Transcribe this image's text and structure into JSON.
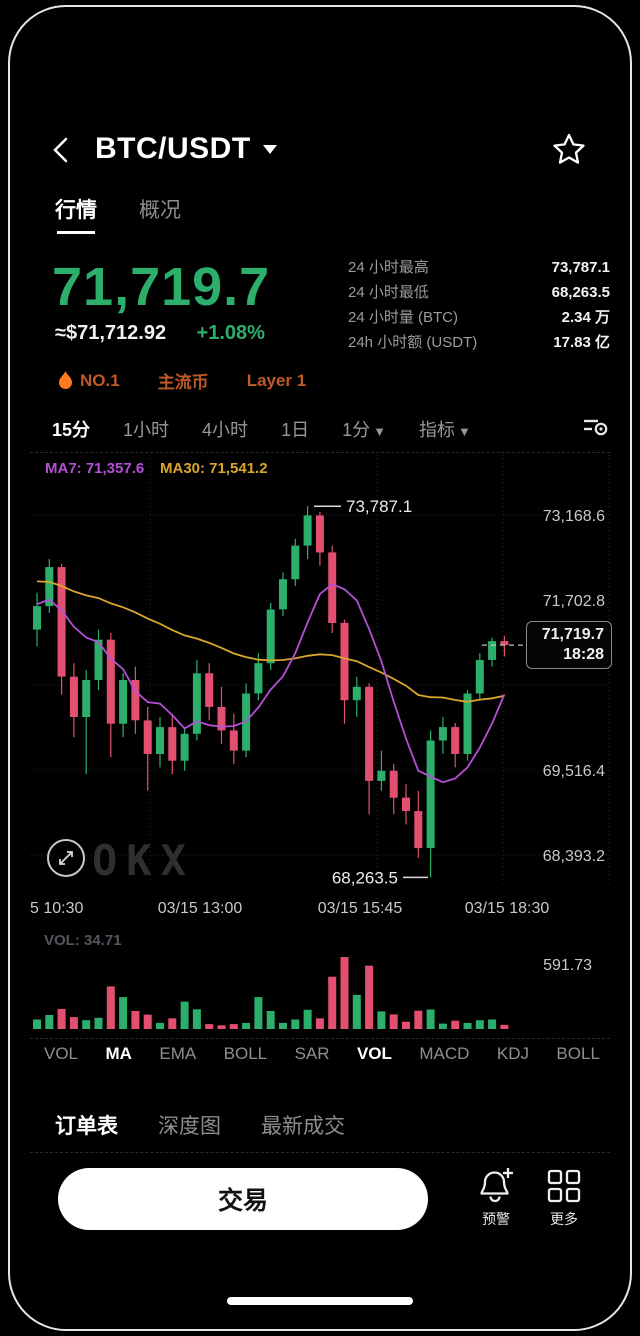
{
  "header": {
    "title": "BTC/USDT"
  },
  "tabs": [
    {
      "name": "quotes",
      "label": "行情",
      "active": true
    },
    {
      "name": "overview",
      "label": "概况",
      "active": false
    }
  ],
  "price": {
    "value": "71,719.7",
    "approx_usd": "≈$71,712.92",
    "change_pct": "+1.08%"
  },
  "stats": [
    {
      "name": "high-24h",
      "label": "24 小时最高",
      "value": "73,787.1"
    },
    {
      "name": "low-24h",
      "label": "24 小时最低",
      "value": "68,263.5"
    },
    {
      "name": "volume-btc-24h",
      "label": "24 小时量 (BTC)",
      "value": "2.34 万"
    },
    {
      "name": "turnover-usdt-24h",
      "label": "24h 小时额 (USDT)",
      "value": "17.83 亿"
    }
  ],
  "badges": [
    {
      "name": "rank-no1",
      "label": "NO.1",
      "flame": true
    },
    {
      "name": "mainstream-coin",
      "label": "主流币",
      "flame": false
    },
    {
      "name": "layer-1",
      "label": "Layer 1",
      "flame": false
    }
  ],
  "timeframes": [
    {
      "name": "tf-15m",
      "label": "15分",
      "active": true,
      "dropdown": false
    },
    {
      "name": "tf-1h",
      "label": "1小时",
      "active": false,
      "dropdown": false
    },
    {
      "name": "tf-4h",
      "label": "4小时",
      "active": false,
      "dropdown": false
    },
    {
      "name": "tf-1d",
      "label": "1日",
      "active": false,
      "dropdown": false
    },
    {
      "name": "tf-1m-dropdown",
      "label": "1分",
      "active": false,
      "dropdown": true
    },
    {
      "name": "indicators-dropdown",
      "label": "指标",
      "active": false,
      "dropdown": true
    }
  ],
  "chart_data": {
    "type": "candlestick",
    "ma_labels": [
      {
        "name": "MA7",
        "value": "71,357.6",
        "color": "#b44fd8"
      },
      {
        "name": "MA30",
        "value": "71,541.2",
        "color": "#d9a62b"
      }
    ],
    "y_axis_labels": [
      "73,168.6",
      "71,702.8",
      "69,516.4",
      "68,393.2"
    ],
    "x_axis_labels": [
      "5 10:30",
      "03/15 13:00",
      "03/15 15:45",
      "03/15 18:30"
    ],
    "high_annotation": "73,787.1",
    "low_annotation": "68,263.5",
    "price_tag": {
      "price": "71,719.7",
      "time": "18:28"
    },
    "watermark": "OKX",
    "y_range": [
      68150,
      74400
    ],
    "colors": {
      "up": "#2daf6c",
      "down": "#e3506f",
      "ma7": "#b44fd8",
      "ma30": "#d9a62b",
      "grid": "#26262f"
    },
    "candles": [
      [
        71950,
        72500,
        71700,
        72300
      ],
      [
        72300,
        73000,
        72200,
        72880
      ],
      [
        72880,
        72930,
        70980,
        71250
      ],
      [
        71250,
        71450,
        70350,
        70650
      ],
      [
        70650,
        71350,
        69800,
        71200
      ],
      [
        71200,
        71950,
        71050,
        71800
      ],
      [
        71800,
        71900,
        70050,
        70550
      ],
      [
        70550,
        71300,
        70350,
        71200
      ],
      [
        71200,
        71400,
        70400,
        70600
      ],
      [
        70600,
        70800,
        69550,
        70100
      ],
      [
        70100,
        70650,
        69900,
        70500
      ],
      [
        70500,
        70700,
        69800,
        70000
      ],
      [
        70000,
        70500,
        69850,
        70400
      ],
      [
        70400,
        71500,
        70300,
        71300
      ],
      [
        71300,
        71450,
        70600,
        70800
      ],
      [
        70800,
        71100,
        70250,
        70450
      ],
      [
        70450,
        70700,
        69950,
        70150
      ],
      [
        70150,
        71150,
        70050,
        71000
      ],
      [
        71000,
        71600,
        70900,
        71450
      ],
      [
        71450,
        72350,
        71350,
        72250
      ],
      [
        72250,
        72800,
        72150,
        72700
      ],
      [
        72700,
        73300,
        72600,
        73200
      ],
      [
        73200,
        73787.1,
        73000,
        73650
      ],
      [
        73650,
        73700,
        72900,
        73100
      ],
      [
        73100,
        73200,
        71900,
        72050
      ],
      [
        72050,
        72100,
        70550,
        70900
      ],
      [
        70900,
        71250,
        70650,
        71100
      ],
      [
        71100,
        71150,
        69200,
        69700
      ],
      [
        69700,
        70150,
        69550,
        69850
      ],
      [
        69850,
        69950,
        69200,
        69450
      ],
      [
        69450,
        69650,
        69050,
        69250
      ],
      [
        69250,
        69550,
        68550,
        68700
      ],
      [
        68700,
        70450,
        68263.5,
        70300
      ],
      [
        70300,
        70650,
        70100,
        70500
      ],
      [
        70500,
        70560,
        69900,
        70100
      ],
      [
        70100,
        71050,
        70000,
        71000
      ],
      [
        71000,
        71600,
        70900,
        71500
      ],
      [
        71500,
        71830,
        71400,
        71780
      ],
      [
        71780,
        71860,
        71550,
        71719.7
      ]
    ],
    "volume": {
      "label": "VOL: 34.71",
      "max_label": "591.73",
      "values": [
        78,
        115,
        165,
        98,
        72,
        92,
        350,
        262,
        148,
        118,
        50,
        88,
        225,
        162,
        40,
        30,
        40,
        50,
        262,
        148,
        50,
        78,
        158,
        88,
        430,
        591.73,
        280,
        520,
        145,
        120,
        60,
        150,
        160,
        44,
        68,
        50,
        72,
        78,
        34.71
      ]
    }
  },
  "indicators": [
    {
      "name": "ind-vol-1",
      "label": "VOL",
      "active": false
    },
    {
      "name": "ind-ma",
      "label": "MA",
      "active": true
    },
    {
      "name": "ind-ema",
      "label": "EMA",
      "active": false
    },
    {
      "name": "ind-boll-1",
      "label": "BOLL",
      "active": false
    },
    {
      "name": "ind-sar",
      "label": "SAR",
      "active": false
    },
    {
      "name": "ind-vol-2",
      "label": "VOL",
      "active": true
    },
    {
      "name": "ind-macd",
      "label": "MACD",
      "active": false
    },
    {
      "name": "ind-kdj",
      "label": "KDJ",
      "active": false
    },
    {
      "name": "ind-boll-2",
      "label": "BOLL",
      "active": false
    }
  ],
  "bottom_tabs": [
    {
      "name": "order-book",
      "label": "订单表",
      "active": true
    },
    {
      "name": "depth-chart",
      "label": "深度图",
      "active": false
    },
    {
      "name": "latest-trades",
      "label": "最新成交",
      "active": false
    }
  ],
  "footer": {
    "trade": "交易",
    "alert": "预警",
    "more": "更多"
  }
}
